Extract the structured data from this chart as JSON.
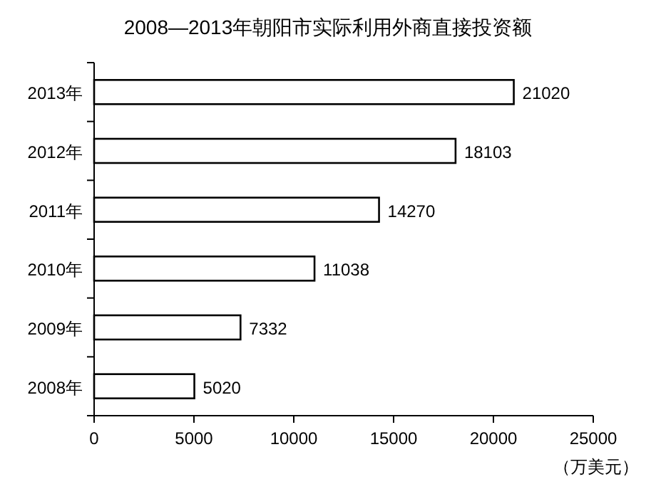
{
  "chart_data": {
    "type": "bar",
    "orientation": "horizontal",
    "title": "2008—2013年朝阳市实际利用外商直接投资额",
    "categories": [
      "2013年",
      "2012年",
      "2011年",
      "2010年",
      "2009年",
      "2008年"
    ],
    "values": [
      21020,
      18103,
      14270,
      11038,
      7332,
      5020
    ],
    "color": "#ffffff",
    "xlim": [
      0,
      25000
    ],
    "xticks": [
      0,
      5000,
      10000,
      15000,
      20000,
      25000
    ],
    "data_labels": true,
    "grid": false,
    "annotations": [
      "（万美元）"
    ]
  }
}
